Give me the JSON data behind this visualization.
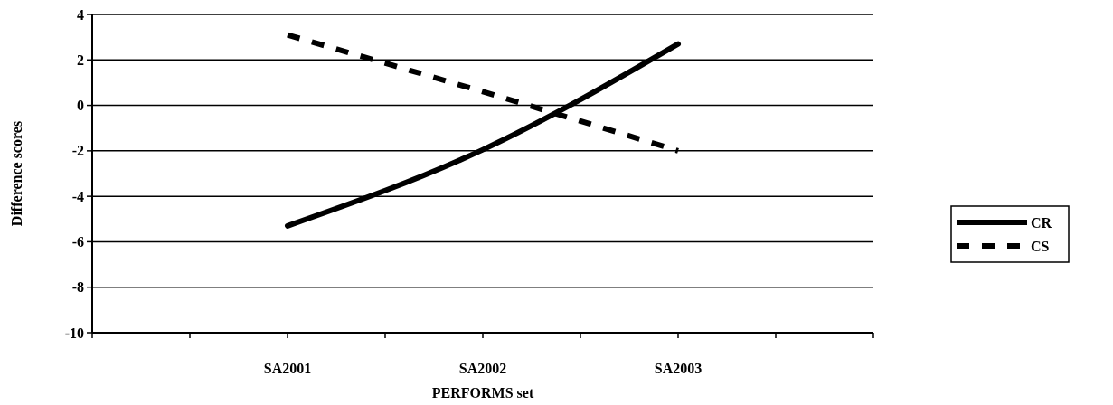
{
  "chart_data": {
    "type": "line",
    "xlabel": "PERFORMS set",
    "ylabel": "Difference scores",
    "categories": [
      null,
      null,
      "SA2001",
      null,
      "SA2002",
      null,
      "SA2003",
      null,
      null
    ],
    "ylim": [
      -10,
      4
    ],
    "yticks": [
      -10,
      -8,
      -6,
      -4,
      -2,
      0,
      2,
      4
    ],
    "grid": "y",
    "legend": "right",
    "marker": "none",
    "series": [
      {
        "name": "CR",
        "color": "#000000",
        "line_style": "solid",
        "values": [
          null,
          null,
          -5.3,
          null,
          -1.95,
          null,
          2.7,
          null,
          null
        ]
      },
      {
        "name": "CS",
        "color": "#000000",
        "line_style": "dashed",
        "values": [
          null,
          null,
          3.1,
          null,
          0.6,
          null,
          -2.0,
          null,
          null
        ]
      }
    ]
  }
}
